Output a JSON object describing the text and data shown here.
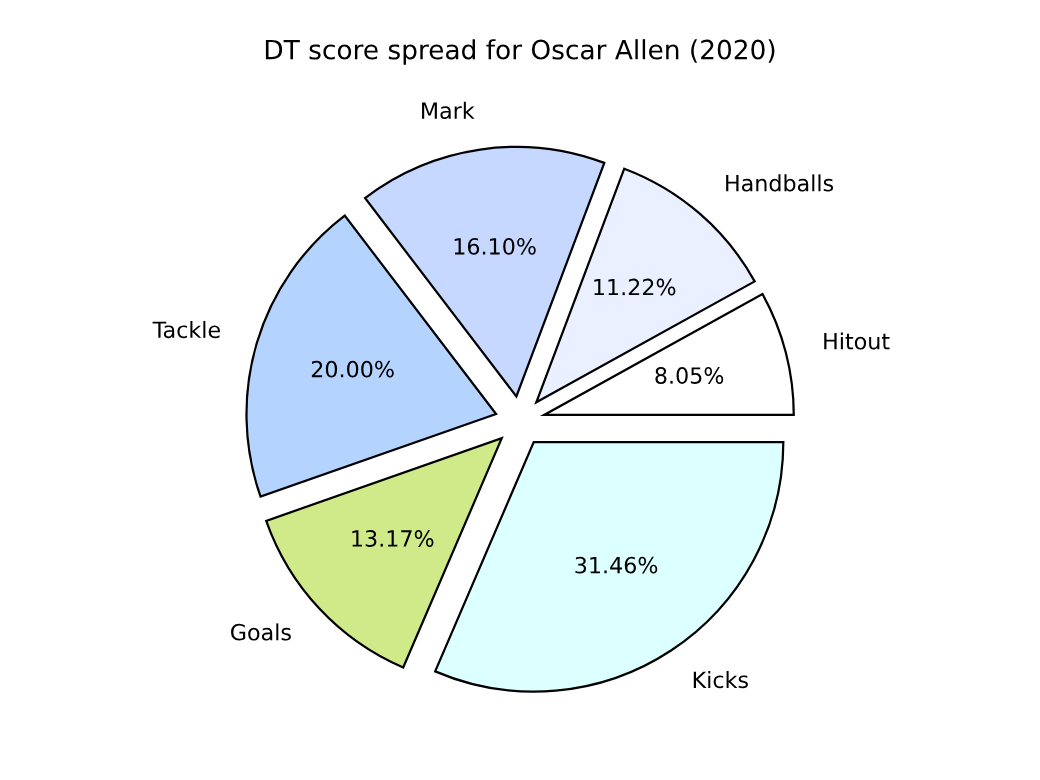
{
  "chart_data": {
    "type": "pie",
    "title": "DT score spread for Oscar Allen (2020)",
    "categories": [
      "Hitout",
      "Handballs",
      "Mark",
      "Tackle",
      "Goals",
      "Kicks"
    ],
    "values": [
      8.05,
      11.22,
      16.1,
      20.0,
      13.17,
      31.46
    ],
    "value_labels": [
      "8.05%",
      "11.22%",
      "16.10%",
      "20.00%",
      "13.17%",
      "31.46%"
    ],
    "colors": [
      "#ffffff",
      "#eaf0ff",
      "#c6d8ff",
      "#b4d4ff",
      "#d0ea8a",
      "#dcffff"
    ]
  }
}
